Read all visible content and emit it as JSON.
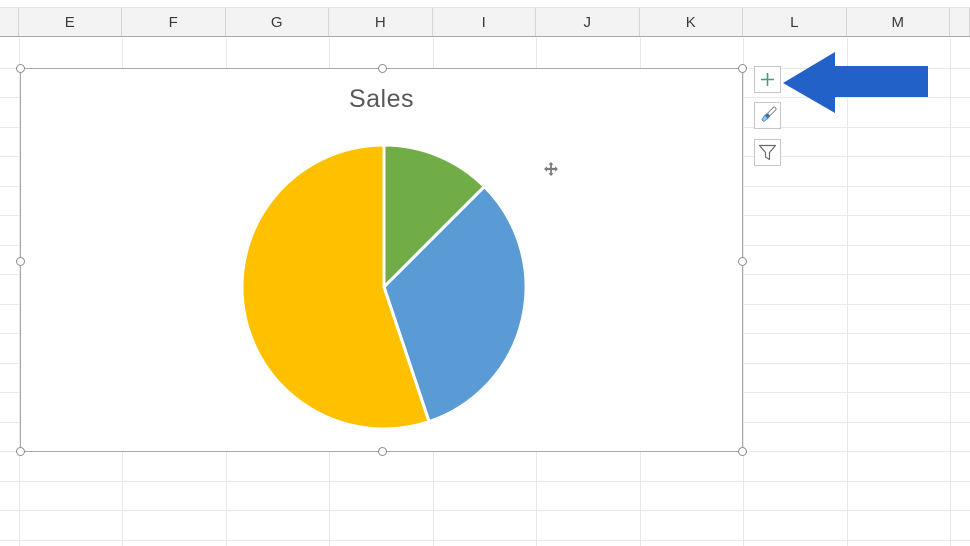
{
  "spreadsheet": {
    "column_headers": [
      "E",
      "F",
      "G",
      "H",
      "I",
      "J",
      "K",
      "L",
      "M"
    ]
  },
  "chart": {
    "title": "Sales",
    "selected": true
  },
  "chart_tools": {
    "elements_button_icon": "plus-icon",
    "styles_button_icon": "paintbrush-icon",
    "filters_button_icon": "funnel-icon"
  },
  "annotation": {
    "arrow_direction": "left",
    "arrow_color": "#2261C7"
  },
  "cursor": {
    "type": "move-cursor"
  },
  "colors": {
    "pie_green": "#70AD47",
    "pie_blue": "#5B9BD5",
    "pie_yellow": "#FFC000",
    "slice_border": "#FFFFFF",
    "title_text": "#595959",
    "selection_border": "#A8A8A8",
    "gridline": "#E9E9E9",
    "header_bg": "#F3F3F3",
    "header_text": "#3A3A3A",
    "plus_icon": "#3F9C87",
    "brush_tip": "#2E75B6",
    "brush_bristle": "#9DC3E6",
    "funnel_outline": "#6D6D6D",
    "arrow_blue": "#2261C7"
  },
  "chart_data": {
    "type": "pie",
    "title": "Sales",
    "legend": "none",
    "data_labels": "none",
    "start_angle_deg": 0,
    "direction": "clockwise",
    "slices": [
      {
        "name": "green slice",
        "share_pct": 12.5,
        "start_deg": 0,
        "end_deg": 45,
        "color": "#70AD47"
      },
      {
        "name": "blue slice",
        "share_pct": 32.4,
        "start_deg": 45,
        "end_deg": 161.5,
        "color": "#5B9BD5"
      },
      {
        "name": "yellow slice",
        "share_pct": 55.1,
        "start_deg": 161.5,
        "end_deg": 360,
        "color": "#FFC000"
      }
    ]
  }
}
